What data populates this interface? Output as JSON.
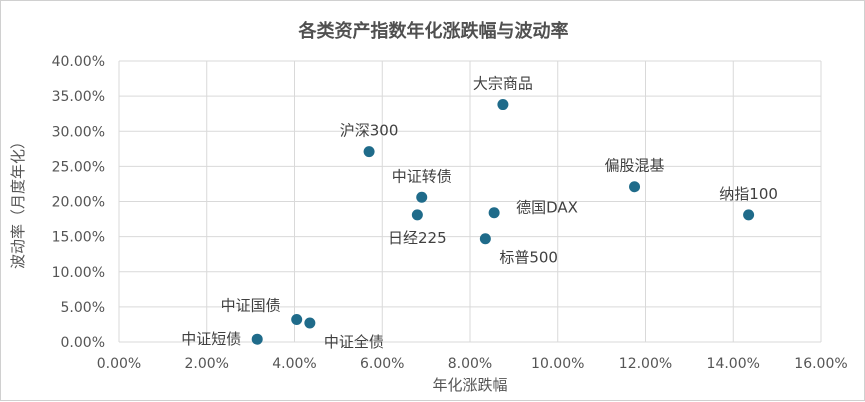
{
  "chart_data": {
    "type": "scatter",
    "title": "各类资产指数年化涨跌幅与波动率",
    "xlabel": "年化涨跌幅",
    "ylabel": "波动率（月度年化）",
    "xlim": [
      0,
      0.16
    ],
    "ylim": [
      0,
      0.4
    ],
    "x_ticks": [
      0,
      0.02,
      0.04,
      0.06,
      0.08,
      0.1,
      0.12,
      0.14,
      0.16
    ],
    "y_ticks": [
      0,
      0.05,
      0.1,
      0.15,
      0.2,
      0.25,
      0.3,
      0.35,
      0.4
    ],
    "x_tick_labels": [
      "0.00%",
      "2.00%",
      "4.00%",
      "6.00%",
      "8.00%",
      "10.00%",
      "12.00%",
      "14.00%",
      "16.00%"
    ],
    "y_tick_labels": [
      "0.00%",
      "5.00%",
      "10.00%",
      "15.00%",
      "20.00%",
      "25.00%",
      "30.00%",
      "35.00%",
      "40.00%"
    ],
    "grid": true,
    "marker_color": "#1f6b8a",
    "points": [
      {
        "label": "大宗商品",
        "x": 0.0875,
        "y": 0.338,
        "label_pos": "above"
      },
      {
        "label": "沪深300",
        "x": 0.057,
        "y": 0.271,
        "label_pos": "above"
      },
      {
        "label": "中证转债",
        "x": 0.069,
        "y": 0.206,
        "label_pos": "above"
      },
      {
        "label": "日经225",
        "x": 0.068,
        "y": 0.181,
        "label_pos": "below"
      },
      {
        "label": "德国DAX",
        "x": 0.0855,
        "y": 0.184,
        "label_pos": "right"
      },
      {
        "label": "标普500",
        "x": 0.0835,
        "y": 0.147,
        "label_pos": "below-right"
      },
      {
        "label": "偏股混基",
        "x": 0.1175,
        "y": 0.221,
        "label_pos": "above"
      },
      {
        "label": "纳指100",
        "x": 0.1435,
        "y": 0.181,
        "label_pos": "above"
      },
      {
        "label": "中证国债",
        "x": 0.0405,
        "y": 0.032,
        "label_pos": "above-left"
      },
      {
        "label": "中证全债",
        "x": 0.0435,
        "y": 0.027,
        "label_pos": "below-right"
      },
      {
        "label": "中证短债",
        "x": 0.0315,
        "y": 0.004,
        "label_pos": "left"
      }
    ]
  }
}
